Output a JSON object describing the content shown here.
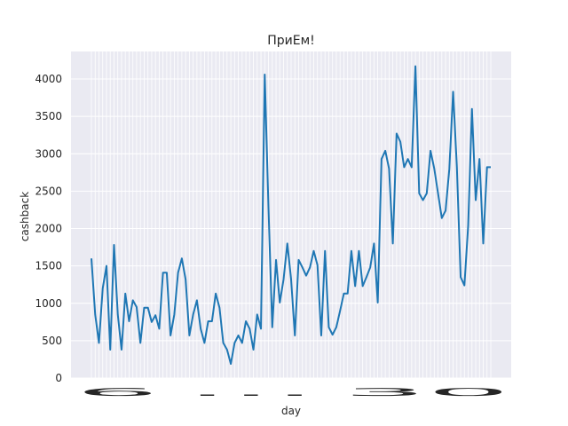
{
  "chart_data": {
    "type": "line",
    "title": "ПриЕм!",
    "xlabel": "day",
    "ylabel": "cashback",
    "ylim": [
      0,
      4200
    ],
    "yticks": [
      0,
      500,
      1000,
      1500,
      2000,
      2500,
      3000,
      3500,
      4000
    ],
    "grid": true,
    "x_tick_label_overlap_text": "6 … 30",
    "line_color": "#1f77b4",
    "background_color": "#eaeaf2",
    "grid_color": "#ffffff",
    "series": [
      {
        "name": "cashback",
        "values": [
          1600,
          850,
          470,
          1200,
          1500,
          380,
          1780,
          850,
          380,
          1130,
          760,
          1040,
          950,
          470,
          940,
          940,
          750,
          840,
          660,
          1410,
          1410,
          570,
          850,
          1410,
          1600,
          1320,
          570,
          850,
          1040,
          660,
          470,
          760,
          760,
          1130,
          940,
          470,
          380,
          190,
          470,
          570,
          470,
          760,
          660,
          380,
          850,
          660,
          4060,
          2270,
          680,
          1580,
          1010,
          1320,
          1800,
          1320,
          570,
          1580,
          1480,
          1370,
          1480,
          1700,
          1510,
          570,
          1700,
          680,
          580,
          680,
          900,
          1130,
          1130,
          1700,
          1230,
          1700,
          1230,
          1350,
          1480,
          1800,
          1010,
          2930,
          3040,
          2800,
          1800,
          3270,
          3160,
          2820,
          2930,
          2820,
          4170,
          2470,
          2380,
          2470,
          3040,
          2800,
          2470,
          2140,
          2240,
          2800,
          3830,
          2820,
          1350,
          1240,
          2040,
          3600,
          2380,
          2930,
          1800,
          2820,
          2820
        ]
      }
    ]
  }
}
